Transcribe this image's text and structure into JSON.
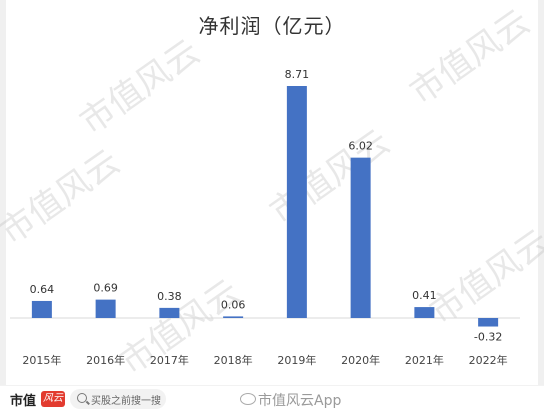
{
  "chart_data": {
    "type": "bar",
    "title": "净利润（亿元）",
    "categories": [
      "2015年",
      "2016年",
      "2017年",
      "2018年",
      "2019年",
      "2020年",
      "2021年",
      "2022年"
    ],
    "values": [
      0.64,
      0.69,
      0.38,
      0.06,
      8.71,
      6.02,
      0.41,
      -0.32
    ],
    "data_labels": [
      "0.64",
      "0.69",
      "0.38",
      "0.06",
      "8.71",
      "6.02",
      "0.41",
      "-0.32"
    ],
    "ylim": [
      -0.5,
      9.5
    ],
    "grid": false,
    "legend": "none",
    "bar_color": "#4472C4"
  },
  "watermark": "市值风云",
  "footer": {
    "brand": "市值",
    "brand_mark": "风云",
    "search_placeholder": "买股之前搜一搜",
    "weibo_text": "市值风云App"
  }
}
